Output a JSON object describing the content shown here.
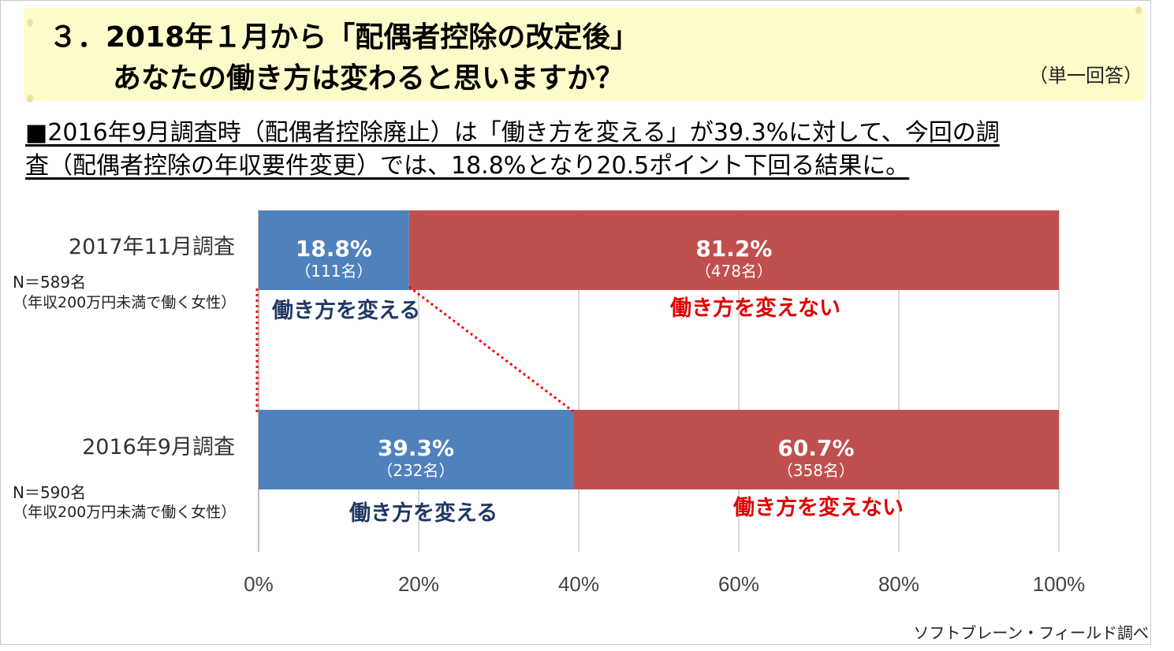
{
  "header": {
    "title_line1": "３．2018年１月から「配偶者控除の改定後」",
    "title_line2": "あなたの働き方は変わると思いますか？",
    "answer_type": "（単一回答）"
  },
  "summary": {
    "line1": "■2016年9月調査時（配偶者控除廃止）は「働き方を変える」が39.3%に対して、今回の調",
    "line2": "査（配偶者控除の年収要件変更）では、18.8%となり20.5ポイント下回る結果に。"
  },
  "source": "ソフトブレーン・フィールド調べ",
  "colors": {
    "change": "#4f81bd",
    "no_change": "#c0504d",
    "change_text": "#1f3864",
    "no_change_text": "#e00000",
    "title_band": "#fdfbc9"
  },
  "chart_data": {
    "type": "bar",
    "orientation": "horizontal",
    "stacked": true,
    "xlim": [
      0,
      100
    ],
    "x_ticks": [
      "0%",
      "20%",
      "40%",
      "60%",
      "80%",
      "100%"
    ],
    "grid": "vertical",
    "categories": [
      "2017年11月調査",
      "2016年9月調査"
    ],
    "sample_notes": [
      {
        "n": "N＝589名",
        "desc": "（年収200万円未満で働く女性）"
      },
      {
        "n": "N＝590名",
        "desc": "（年収200万円未満で働く女性）"
      }
    ],
    "series": [
      {
        "name": "働き方を変える",
        "values": [
          18.8,
          39.3
        ],
        "labels": [
          "18.8%",
          "39.3%"
        ],
        "counts": [
          "（111名）",
          "（232名）"
        ]
      },
      {
        "name": "働き方を変えない",
        "values": [
          81.2,
          60.7
        ],
        "labels": [
          "81.2%",
          "60.7%"
        ],
        "counts": [
          "（478名）",
          "（358名）"
        ]
      }
    ],
    "connector": "dotted-red"
  }
}
